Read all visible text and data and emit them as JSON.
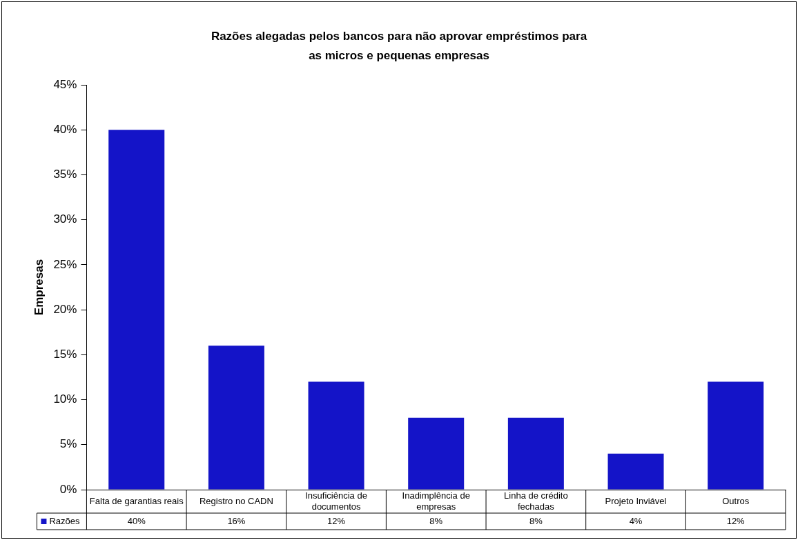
{
  "chart_data": {
    "type": "bar",
    "title": "Razões alegadas pelos bancos para não aprovar empréstimos para as micros e pequenas empresas",
    "ylabel": "Empresas",
    "categories": [
      "Falta de garantias reais",
      "Registro no CADN",
      "Insuficiência de documentos",
      "Inadimplência de empresas",
      "Linha de crédito fechadas",
      "Projeto Inviável",
      "Outros"
    ],
    "series": [
      {
        "name": "Razões",
        "color": "#1414c8",
        "values": [
          40,
          16,
          12,
          8,
          8,
          4,
          12
        ],
        "value_labels": [
          "40%",
          "16%",
          "12%",
          "8%",
          "8%",
          "4%",
          "12%"
        ]
      }
    ],
    "ylim": [
      0,
      45
    ],
    "yticks": [
      {
        "value": 0,
        "label": "0%"
      },
      {
        "value": 5,
        "label": "5%"
      },
      {
        "value": 10,
        "label": "10%"
      },
      {
        "value": 15,
        "label": "15%"
      },
      {
        "value": 20,
        "label": "20%"
      },
      {
        "value": 25,
        "label": "25%"
      },
      {
        "value": 30,
        "label": "30%"
      },
      {
        "value": 35,
        "label": "35%"
      },
      {
        "value": 40,
        "label": "40%"
      },
      {
        "value": 45,
        "label": "45%"
      }
    ],
    "grid": false
  }
}
